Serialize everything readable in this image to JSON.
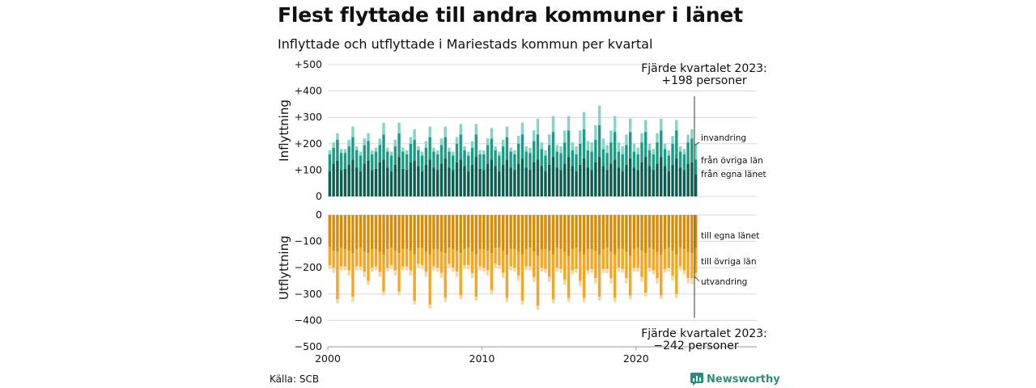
{
  "title": "Flest flyttade till andra kommuner i länet",
  "subtitle": "Inflyttade och utflyttade i Mariestads kommun per kvartal",
  "source": "Källa: SCB",
  "brand": "Newsworthy",
  "colors": {
    "in_egna": "#0b5e50",
    "in_ovriga": "#1d9c84",
    "in_invandring": "#86d4c4",
    "out_egna": "#d98a06",
    "out_ovriga": "#f5a623",
    "out_utvandring": "#f9d79a"
  },
  "chart_data": [
    {
      "type": "bar",
      "stacked": true,
      "ylabel": "Inflyttning",
      "ylim": [
        0,
        500
      ],
      "yticks": [
        "0",
        "+100",
        "+200",
        "+300",
        "+400",
        "+500"
      ],
      "annotation": {
        "line1": "Fjärde kvartalet 2023:",
        "line2": "+198 personer"
      },
      "segment_labels": [
        "invandring",
        "från övriga län",
        "från egna länet"
      ],
      "quarters_start": "2000 Q1",
      "quarters_end": "2023 Q4",
      "series": [
        {
          "name": "från egna länet",
          "values": [
            95,
            125,
            135,
            100,
            105,
            120,
            140,
            110,
            95,
            125,
            135,
            100,
            105,
            130,
            140,
            110,
            95,
            120,
            150,
            105,
            100,
            130,
            135,
            115,
            95,
            120,
            140,
            110,
            100,
            125,
            145,
            110,
            100,
            130,
            140,
            115,
            95,
            120,
            150,
            105,
            100,
            125,
            140,
            115,
            95,
            120,
            140,
            110,
            100,
            125,
            145,
            110,
            100,
            130,
            140,
            115,
            95,
            120,
            150,
            110,
            100,
            125,
            150,
            115,
            95,
            120,
            145,
            110,
            100,
            130,
            150,
            115,
            100,
            125,
            140,
            110,
            95,
            120,
            145,
            110,
            100,
            130,
            150,
            115,
            100,
            125,
            150,
            115,
            95,
            120,
            145,
            110,
            100,
            125,
            130,
            85
          ]
        },
        {
          "name": "från övriga län",
          "values": [
            65,
            60,
            80,
            65,
            60,
            70,
            85,
            65,
            60,
            70,
            75,
            60,
            65,
            65,
            95,
            60,
            60,
            70,
            90,
            65,
            60,
            70,
            80,
            60,
            60,
            65,
            85,
            60,
            60,
            70,
            80,
            60,
            55,
            70,
            95,
            60,
            60,
            65,
            85,
            55,
            60,
            70,
            80,
            60,
            60,
            70,
            85,
            60,
            60,
            75,
            90,
            60,
            65,
            80,
            95,
            65,
            60,
            75,
            95,
            60,
            65,
            80,
            100,
            60,
            65,
            80,
            110,
            65,
            70,
            85,
            120,
            65,
            65,
            80,
            105,
            60,
            65,
            75,
            100,
            60,
            60,
            75,
            95,
            60,
            60,
            80,
            100,
            65,
            60,
            80,
            105,
            60,
            60,
            80,
            90,
            55
          ]
        },
        {
          "name": "invandring",
          "values": [
            15,
            20,
            25,
            15,
            15,
            25,
            40,
            15,
            15,
            25,
            30,
            15,
            15,
            25,
            45,
            15,
            15,
            25,
            40,
            15,
            15,
            25,
            40,
            15,
            15,
            25,
            40,
            15,
            15,
            25,
            40,
            15,
            15,
            25,
            40,
            15,
            15,
            25,
            40,
            15,
            15,
            25,
            40,
            15,
            15,
            25,
            40,
            15,
            15,
            30,
            45,
            20,
            20,
            40,
            60,
            25,
            20,
            40,
            60,
            25,
            25,
            45,
            55,
            30,
            30,
            50,
            65,
            35,
            35,
            55,
            75,
            40,
            30,
            45,
            60,
            35,
            30,
            40,
            50,
            30,
            25,
            35,
            45,
            25,
            20,
            35,
            45,
            20,
            20,
            30,
            40,
            20,
            20,
            30,
            35,
            58
          ]
        }
      ]
    },
    {
      "type": "bar",
      "stacked": true,
      "ylabel": "Utflyttning",
      "ylim": [
        -500,
        0
      ],
      "yticks": [
        "−500",
        "−400",
        "−300",
        "−200",
        "−100",
        "0"
      ],
      "xticks": [
        "2000",
        "2010",
        "2020"
      ],
      "annotation": {
        "line1": "Fjärde kvartalet 2023:",
        "line2": "−242 personer"
      },
      "segment_labels": [
        "till egna länet",
        "till övriga län",
        "utvandring"
      ],
      "quarters_start": "2000 Q1",
      "quarters_end": "2023 Q4",
      "series": [
        {
          "name": "till egna länet",
          "values": [
            -120,
            -135,
            -140,
            -125,
            -130,
            -135,
            -145,
            -130,
            -125,
            -140,
            -145,
            -130,
            -130,
            -140,
            -150,
            -130,
            -125,
            -135,
            -145,
            -130,
            -130,
            -135,
            -150,
            -125,
            -125,
            -140,
            -150,
            -130,
            -130,
            -140,
            -145,
            -125,
            -130,
            -135,
            -145,
            -130,
            -125,
            -140,
            -150,
            -130,
            -130,
            -135,
            -145,
            -125,
            -125,
            -135,
            -150,
            -130,
            -130,
            -140,
            -150,
            -130,
            -125,
            -140,
            -155,
            -130,
            -130,
            -135,
            -150,
            -125,
            -130,
            -140,
            -155,
            -130,
            -125,
            -140,
            -150,
            -130,
            -130,
            -135,
            -150,
            -130,
            -125,
            -140,
            -150,
            -130,
            -130,
            -140,
            -155,
            -130,
            -125,
            -135,
            -145,
            -125,
            -130,
            -140,
            -150,
            -130,
            -125,
            -135,
            -150,
            -125,
            -130,
            -140,
            -145,
            -125
          ]
        },
        {
          "name": "till övriga län",
          "values": [
            -70,
            -65,
            -180,
            -70,
            -65,
            -75,
            -165,
            -65,
            -70,
            -75,
            -105,
            -70,
            -65,
            -75,
            -140,
            -70,
            -65,
            -75,
            -145,
            -65,
            -65,
            -75,
            -175,
            -60,
            -65,
            -75,
            -190,
            -65,
            -70,
            -80,
            -170,
            -60,
            -70,
            -80,
            -160,
            -60,
            -65,
            -80,
            -160,
            -65,
            -70,
            -75,
            -140,
            -60,
            -65,
            -85,
            -165,
            -65,
            -70,
            -90,
            -175,
            -65,
            -70,
            -95,
            -190,
            -70,
            -75,
            -100,
            -170,
            -75,
            -75,
            -105,
            -160,
            -80,
            -80,
            -110,
            -165,
            -80,
            -75,
            -105,
            -160,
            -75,
            -80,
            -100,
            -165,
            -70,
            -75,
            -100,
            -150,
            -70,
            -75,
            -100,
            -150,
            -75,
            -80,
            -100,
            -155,
            -75,
            -75,
            -95,
            -150,
            -70,
            -80,
            -100,
            -95,
            -95
          ]
        },
        {
          "name": "utvandring",
          "values": [
            -15,
            -20,
            -15,
            -15,
            -15,
            -20,
            -20,
            -15,
            -15,
            -20,
            -15,
            -15,
            -15,
            -20,
            -15,
            -15,
            -15,
            -20,
            -15,
            -15,
            -15,
            -20,
            -15,
            -15,
            -15,
            -20,
            -15,
            -15,
            -15,
            -20,
            -15,
            -15,
            -15,
            -20,
            -15,
            -15,
            -15,
            -20,
            -15,
            -15,
            -15,
            -20,
            -15,
            -15,
            -15,
            -20,
            -15,
            -15,
            -15,
            -20,
            -15,
            -15,
            -15,
            -20,
            -15,
            -15,
            -15,
            -20,
            -15,
            -15,
            -15,
            -20,
            -15,
            -15,
            -15,
            -20,
            -15,
            -15,
            -15,
            -20,
            -15,
            -15,
            -15,
            -20,
            -15,
            -15,
            -15,
            -20,
            -15,
            -15,
            -15,
            -20,
            -15,
            -15,
            -15,
            -20,
            -15,
            -15,
            -15,
            -20,
            -15,
            -15,
            -15,
            -20,
            -22,
            -22
          ]
        }
      ]
    }
  ]
}
